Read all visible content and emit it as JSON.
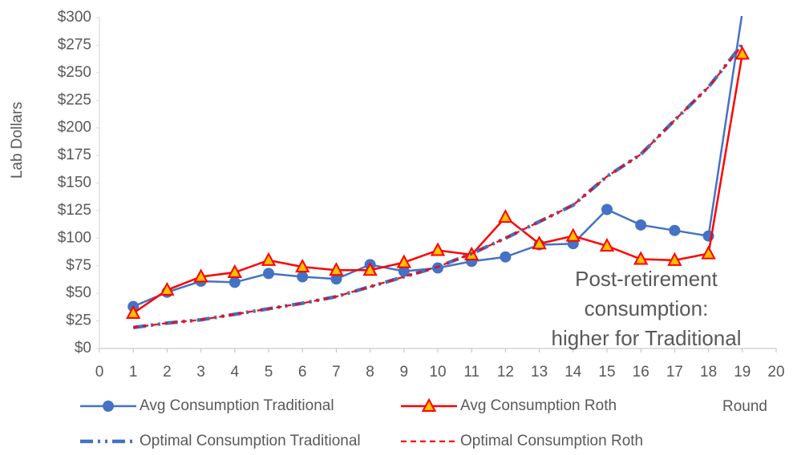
{
  "chart_data": {
    "type": "line",
    "y_label": "Lab Dollars",
    "x_label": "Round",
    "annotation": [
      "Post-retirement",
      "consumption:",
      "higher for Traditional"
    ],
    "x": [
      1,
      2,
      3,
      4,
      5,
      6,
      7,
      8,
      9,
      10,
      11,
      12,
      13,
      14,
      15,
      16,
      17,
      18,
      19
    ],
    "series": [
      {
        "name": "Avg Consumption Traditional",
        "color": "#4472c4",
        "marker": "circle",
        "dash": "solid",
        "values": [
          38,
          51,
          61,
          60,
          68,
          65,
          63,
          76,
          70,
          73,
          79,
          83,
          94,
          95,
          126,
          112,
          107,
          102,
          305
        ]
      },
      {
        "name": "Avg Consumption Roth",
        "color": "#ff0000",
        "marker": "triangle",
        "dash": "solid",
        "values": [
          32,
          53,
          65,
          69,
          80,
          74,
          71,
          71,
          78,
          89,
          85,
          119,
          95,
          102,
          93,
          81,
          80,
          86,
          267
        ]
      },
      {
        "name": "Optimal Consumption Traditional",
        "color": "#4472c4",
        "marker": "none",
        "dash": "dashdot",
        "values": [
          19,
          23,
          26,
          31,
          36,
          41,
          47,
          56,
          65,
          74,
          86,
          100,
          115,
          130,
          156,
          176,
          207,
          237,
          276
        ]
      },
      {
        "name": "Optimal Consumption Roth",
        "color": "#ff0000",
        "marker": "none",
        "dash": "dashed",
        "values": [
          19,
          23,
          26,
          31,
          36,
          41,
          47,
          56,
          65,
          74,
          86,
          100,
          115,
          130,
          156,
          176,
          207,
          237,
          275
        ]
      }
    ],
    "xlim": [
      0,
      20
    ],
    "xticks": [
      0,
      1,
      2,
      3,
      4,
      5,
      6,
      7,
      8,
      9,
      10,
      11,
      12,
      13,
      14,
      15,
      16,
      17,
      18,
      19,
      20
    ],
    "ylim": [
      0,
      300
    ],
    "yticks": [
      {
        "value": 0,
        "label": "$0"
      },
      {
        "value": 25,
        "label": "$25"
      },
      {
        "value": 50,
        "label": "$50"
      },
      {
        "value": 75,
        "label": "$75"
      },
      {
        "value": 100,
        "label": "$100"
      },
      {
        "value": 125,
        "label": "$125"
      },
      {
        "value": 150,
        "label": "$150"
      },
      {
        "value": 175,
        "label": "$175"
      },
      {
        "value": 200,
        "label": "$200"
      },
      {
        "value": 225,
        "label": "$225"
      },
      {
        "value": 250,
        "label": "$250"
      },
      {
        "value": 275,
        "label": "$275"
      },
      {
        "value": 300,
        "label": "$300"
      }
    ],
    "grid": false,
    "legend": "bottom"
  }
}
